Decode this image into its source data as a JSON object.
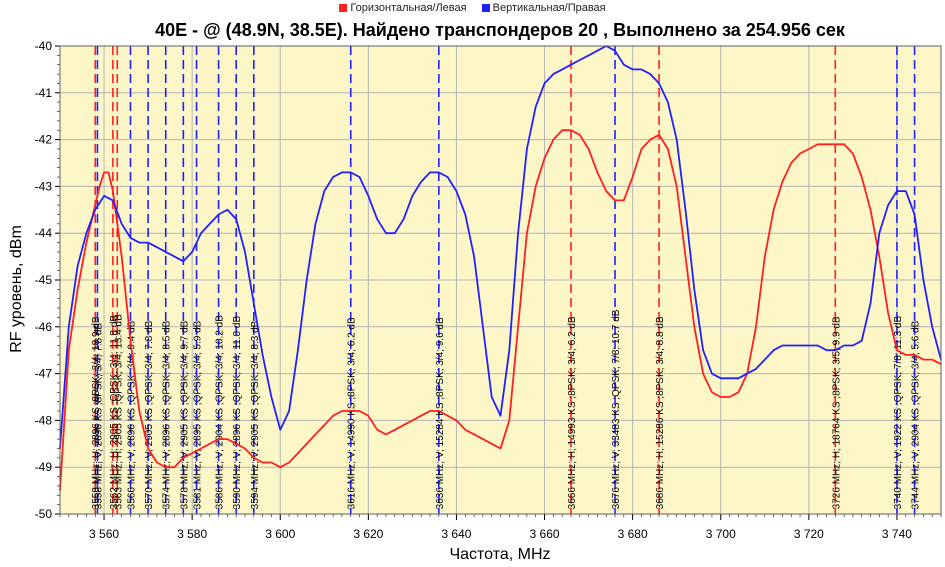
{
  "legend": {
    "horizontal": "Горизонтальная/Левая",
    "vertical": "Вертикальная/Правая"
  },
  "colors": {
    "horizontal": "#ff2020",
    "vertical": "#2020ff",
    "plot_bg": "#fdf7c8"
  },
  "chart_data": {
    "type": "line",
    "title": "40E -  @  (48.9N, 38.5E). Найдено транспондеров 20 , Выполнено за 254.956 сек",
    "xlabel": "Частота, MHz",
    "ylabel": "RF уровень, dBm",
    "xlim": [
      3550,
      3750
    ],
    "ylim": [
      -50,
      -40
    ],
    "xticks": [
      3560,
      3580,
      3600,
      3620,
      3640,
      3660,
      3680,
      3700,
      3720,
      3740
    ],
    "xtick_labels": [
      "3 560",
      "3 580",
      "3 600",
      "3 620",
      "3 640",
      "3 660",
      "3 680",
      "3 700",
      "3 720",
      "3 740"
    ],
    "yticks": [
      -50,
      -49,
      -48,
      -47,
      -46,
      -45,
      -44,
      -43,
      -42,
      -41,
      -40
    ],
    "grid": true,
    "legend_position": "top",
    "series": [
      {
        "name": "Горизонтальная/Левая",
        "color": "#ff2020",
        "x": [
          3550,
          3552,
          3554,
          3556,
          3558,
          3559,
          3560,
          3561,
          3562,
          3564,
          3566,
          3568,
          3570,
          3572,
          3574,
          3576,
          3578,
          3580,
          3582,
          3584,
          3586,
          3588,
          3590,
          3592,
          3594,
          3596,
          3598,
          3600,
          3602,
          3604,
          3606,
          3608,
          3610,
          3612,
          3614,
          3616,
          3618,
          3620,
          3622,
          3624,
          3626,
          3628,
          3630,
          3632,
          3634,
          3636,
          3638,
          3640,
          3642,
          3644,
          3646,
          3648,
          3650,
          3652,
          3654,
          3656,
          3658,
          3660,
          3662,
          3664,
          3666,
          3668,
          3670,
          3672,
          3674,
          3676,
          3678,
          3680,
          3682,
          3684,
          3686,
          3688,
          3690,
          3692,
          3694,
          3696,
          3698,
          3700,
          3702,
          3704,
          3706,
          3708,
          3710,
          3712,
          3714,
          3716,
          3718,
          3720,
          3722,
          3724,
          3726,
          3728,
          3730,
          3732,
          3734,
          3736,
          3738,
          3740,
          3742,
          3744,
          3746,
          3748,
          3750
        ],
        "y": [
          -49.5,
          -46.5,
          -45.2,
          -44.2,
          -43.4,
          -43.0,
          -42.7,
          -42.7,
          -43.1,
          -44.5,
          -46.3,
          -47.8,
          -48.6,
          -48.9,
          -49.0,
          -49.0,
          -48.8,
          -48.7,
          -48.6,
          -48.5,
          -48.4,
          -48.4,
          -48.5,
          -48.6,
          -48.8,
          -48.9,
          -48.9,
          -49.0,
          -48.9,
          -48.7,
          -48.5,
          -48.3,
          -48.1,
          -47.9,
          -47.8,
          -47.8,
          -47.8,
          -47.9,
          -48.2,
          -48.3,
          -48.2,
          -48.1,
          -48.0,
          -47.9,
          -47.8,
          -47.8,
          -47.9,
          -48.0,
          -48.2,
          -48.3,
          -48.4,
          -48.5,
          -48.6,
          -48.0,
          -46.0,
          -44.0,
          -43.0,
          -42.4,
          -42.0,
          -41.8,
          -41.8,
          -41.9,
          -42.2,
          -42.7,
          -43.1,
          -43.3,
          -43.3,
          -42.8,
          -42.2,
          -42.0,
          -41.9,
          -42.2,
          -43.0,
          -44.5,
          -46.0,
          -47.0,
          -47.4,
          -47.5,
          -47.5,
          -47.4,
          -47.0,
          -46.0,
          -44.5,
          -43.5,
          -42.9,
          -42.5,
          -42.3,
          -42.2,
          -42.1,
          -42.1,
          -42.1,
          -42.1,
          -42.3,
          -42.8,
          -43.5,
          -44.5,
          -45.7,
          -46.5,
          -46.6,
          -46.6,
          -46.7,
          -46.7,
          -46.8
        ]
      },
      {
        "name": "Вертикальная/Правая",
        "color": "#2020ff",
        "x": [
          3550,
          3552,
          3554,
          3556,
          3558,
          3560,
          3562,
          3564,
          3566,
          3568,
          3570,
          3572,
          3574,
          3576,
          3578,
          3580,
          3582,
          3584,
          3586,
          3588,
          3590,
          3592,
          3594,
          3596,
          3598,
          3600,
          3602,
          3604,
          3606,
          3608,
          3610,
          3612,
          3614,
          3616,
          3618,
          3620,
          3622,
          3624,
          3626,
          3628,
          3630,
          3632,
          3634,
          3636,
          3638,
          3640,
          3642,
          3644,
          3646,
          3648,
          3650,
          3652,
          3654,
          3656,
          3658,
          3660,
          3662,
          3664,
          3666,
          3668,
          3670,
          3672,
          3674,
          3676,
          3678,
          3680,
          3682,
          3684,
          3686,
          3688,
          3690,
          3692,
          3694,
          3696,
          3698,
          3700,
          3702,
          3704,
          3706,
          3708,
          3710,
          3712,
          3714,
          3716,
          3718,
          3720,
          3722,
          3724,
          3726,
          3728,
          3730,
          3732,
          3734,
          3736,
          3738,
          3740,
          3742,
          3744,
          3746,
          3748,
          3750
        ],
        "y": [
          -48.6,
          -46.0,
          -44.7,
          -44.0,
          -43.5,
          -43.2,
          -43.3,
          -43.8,
          -44.1,
          -44.2,
          -44.2,
          -44.3,
          -44.4,
          -44.5,
          -44.6,
          -44.4,
          -44.0,
          -43.8,
          -43.6,
          -43.5,
          -43.7,
          -44.4,
          -45.5,
          -46.6,
          -47.5,
          -48.2,
          -47.8,
          -46.5,
          -45.0,
          -43.8,
          -43.1,
          -42.8,
          -42.7,
          -42.7,
          -42.8,
          -43.2,
          -43.7,
          -44.0,
          -44.0,
          -43.7,
          -43.2,
          -42.9,
          -42.7,
          -42.7,
          -42.8,
          -43.1,
          -43.6,
          -44.5,
          -46.0,
          -47.5,
          -47.9,
          -46.5,
          -44.0,
          -42.2,
          -41.3,
          -40.8,
          -40.6,
          -40.5,
          -40.4,
          -40.3,
          -40.2,
          -40.1,
          -40.0,
          -40.1,
          -40.4,
          -40.5,
          -40.5,
          -40.6,
          -40.8,
          -41.2,
          -42.0,
          -43.5,
          -45.2,
          -46.5,
          -47.0,
          -47.1,
          -47.1,
          -47.1,
          -47.0,
          -46.9,
          -46.7,
          -46.5,
          -46.4,
          -46.4,
          -46.4,
          -46.4,
          -46.4,
          -46.5,
          -46.5,
          -46.4,
          -46.4,
          -46.3,
          -45.5,
          -44.0,
          -43.4,
          -43.1,
          -43.1,
          -43.6,
          -45.0,
          -46.0,
          -46.7
        ]
      }
    ],
    "transponders": [
      {
        "freq": 3558,
        "pol": "H",
        "label": "3558 MHz; H; 2896 KS ;8PSK; 3/4; 18.9 dB"
      },
      {
        "freq": 3558.5,
        "pol": "V",
        "label": "3558 MHz; V; 2896 KS ;8PSK; 3/4; 7.8 dB"
      },
      {
        "freq": 3562,
        "pol": "H",
        "label": "3562 MHz; H; 2905 KS ;QPSK; 3/4; 11.8 dB"
      },
      {
        "freq": 3563,
        "pol": "H",
        "label": "3563 MHz; H; 2905 KS ;QPSK; 3/4; 13.4 dB"
      },
      {
        "freq": 3566,
        "pol": "V",
        "label": "3566 MHz; V; 2896 KS ;QPSK; 3/4; 9.4 dB"
      },
      {
        "freq": 3570,
        "pol": "V",
        "label": "3570 MHz; V; 2905 KS ;QPSK; 3/4; 7.8 dB"
      },
      {
        "freq": 3574,
        "pol": "V",
        "label": "3574 MHz; V; 2896 KS ;QPSK; 3/4; 8.5 dB"
      },
      {
        "freq": 3578,
        "pol": "V",
        "label": "3578 MHz; V; 2905 KS ;QPSK; 3/4; 9.7 dB"
      },
      {
        "freq": 3581,
        "pol": "V",
        "label": "3581 MHz; V; 2895 KS ;QPSK; 3/4; 5.9 dB"
      },
      {
        "freq": 3586,
        "pol": "V",
        "label": "3586 MHz; V; 2904 KS ;QPSK; 3/4; 10.2 dB"
      },
      {
        "freq": 3590,
        "pol": "V",
        "label": "3590 MHz; V; 2896 KS ;QPSK; 3/4; 11.0 dB"
      },
      {
        "freq": 3594,
        "pol": "V",
        "label": "3594 MHz; V; 2905 KS ;QPSK; 3/4; 8.3 dB"
      },
      {
        "freq": 3616,
        "pol": "V",
        "label": "3616 MHz; V; 14990 KS ;8PSK; 3/4; 6.2 dB"
      },
      {
        "freq": 3636,
        "pol": "V",
        "label": "3636 MHz; V; 15284 KS ;8PSK; 3/4; 9.6 dB"
      },
      {
        "freq": 3666,
        "pol": "H",
        "label": "3666 MHz; H; 14993 KS ;8PSK; 3/4; 6.2 dB"
      },
      {
        "freq": 3676,
        "pol": "V",
        "label": "3676 MHz; V; 33483 KS ;QPSK; 7/8; 10.7 dB"
      },
      {
        "freq": 3686,
        "pol": "H",
        "label": "3686 MHz; H; 15286 KS ;8PSK; 3/4; 8.8 dB"
      },
      {
        "freq": 3726,
        "pol": "H",
        "label": "3726 MHz; H; 18764 KS ;8PSK; 3/5; 9.9 dB"
      },
      {
        "freq": 3740,
        "pol": "V",
        "label": "3740 MHz; V; 1922 KS ;QPSK; 7/8; 11.3 dB"
      },
      {
        "freq": 3744,
        "pol": "V",
        "label": "3744 MHz; V; 2904 KS ;QPSK; 3/4; 5.6 dB"
      }
    ]
  }
}
